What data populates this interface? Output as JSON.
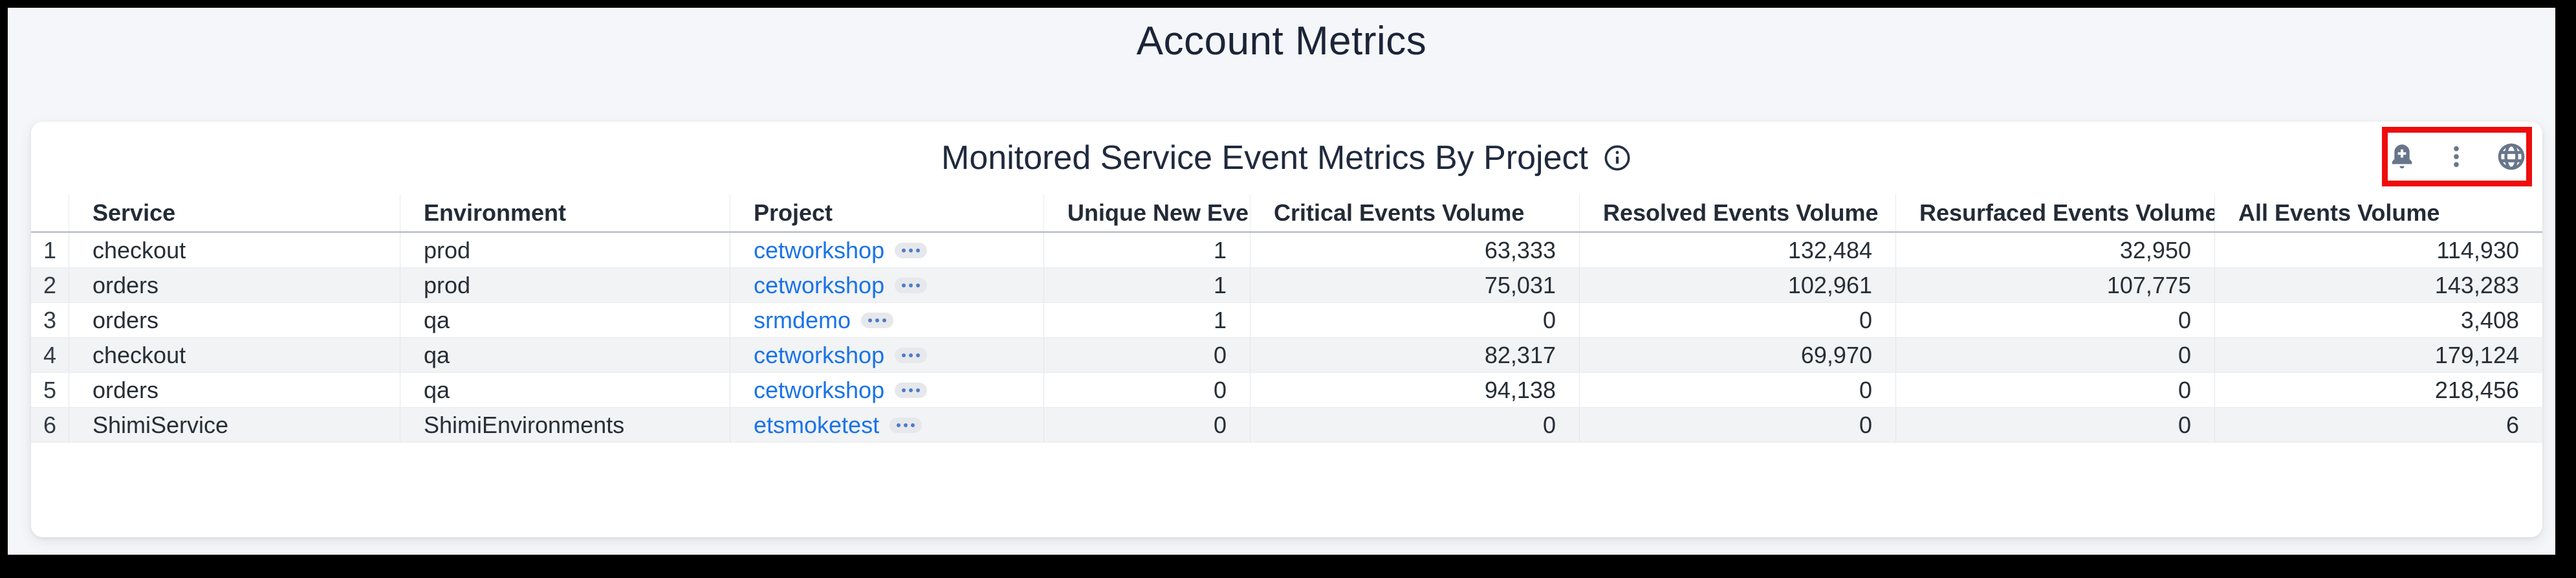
{
  "page": {
    "title": "Account Metrics"
  },
  "card": {
    "title": "Monitored Service Event Metrics By Project",
    "info_icon": "info-circle-icon",
    "toolbar": {
      "highlight_color": "#ee0d0d",
      "icon_color": "#68768b",
      "icons": [
        "add-alert-bell-icon",
        "kebab-menu-icon",
        "globe-icon"
      ]
    }
  },
  "table": {
    "columns": {
      "service": "Service",
      "environment": "Environment",
      "project": "Project",
      "unique_new_ever": "Unique New Ever",
      "critical": "Critical Events Volume",
      "resolved": "Resolved Events Volume",
      "resurfaced": "Resurfaced Events Volume",
      "all": "All Events Volume"
    },
    "sorted_column": "Unique New Ever",
    "sort_direction": "desc",
    "project_chip_icon": "ellipsis-icon",
    "link_color": "#1a73e8",
    "rows": [
      {
        "index": "1",
        "service": "checkout",
        "environment": "prod",
        "project": "cetworkshop",
        "unique_new_ever": "1",
        "critical": "63,333",
        "resolved": "132,484",
        "resurfaced": "32,950",
        "all": "114,930"
      },
      {
        "index": "2",
        "service": "orders",
        "environment": "prod",
        "project": "cetworkshop",
        "unique_new_ever": "1",
        "critical": "75,031",
        "resolved": "102,961",
        "resurfaced": "107,775",
        "all": "143,283"
      },
      {
        "index": "3",
        "service": "orders",
        "environment": "qa",
        "project": "srmdemo",
        "unique_new_ever": "1",
        "critical": "0",
        "resolved": "0",
        "resurfaced": "0",
        "all": "3,408"
      },
      {
        "index": "4",
        "service": "checkout",
        "environment": "qa",
        "project": "cetworkshop",
        "unique_new_ever": "0",
        "critical": "82,317",
        "resolved": "69,970",
        "resurfaced": "0",
        "all": "179,124"
      },
      {
        "index": "5",
        "service": "orders",
        "environment": "qa",
        "project": "cetworkshop",
        "unique_new_ever": "0",
        "critical": "94,138",
        "resolved": "0",
        "resurfaced": "0",
        "all": "218,456"
      },
      {
        "index": "6",
        "service": "ShimiService",
        "environment": "ShimiEnvironments",
        "project": "etsmoketest",
        "unique_new_ever": "0",
        "critical": "0",
        "resolved": "0",
        "resurfaced": "0",
        "all": "6"
      }
    ]
  }
}
